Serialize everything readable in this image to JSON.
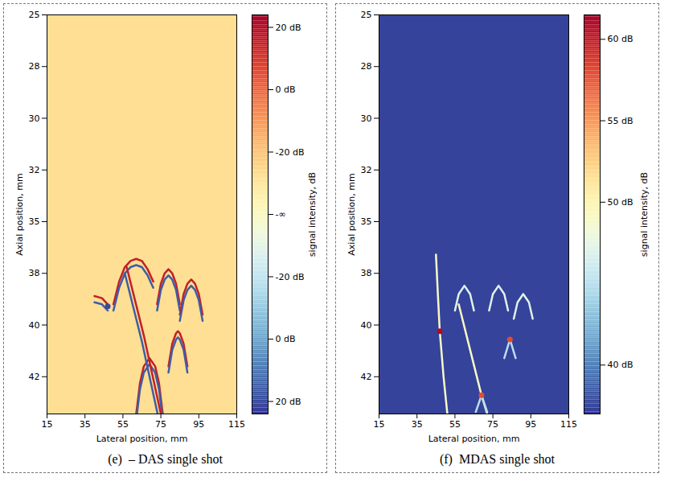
{
  "chart_data": [
    {
      "type": "heatmap",
      "title": "(e)  – DAS single shot",
      "x_label": "Lateral position, mm",
      "y_label": "Axial position, mm",
      "xlim": [
        15,
        115
      ],
      "xticks": [
        15,
        35,
        55,
        75,
        95,
        115
      ],
      "ylim": [
        25,
        44.3
      ],
      "yticks": [
        {
          "value": 25,
          "label": "25"
        },
        {
          "value": 27.5,
          "label": "28"
        },
        {
          "value": 30,
          "label": "30"
        },
        {
          "value": 32.5,
          "label": "32"
        },
        {
          "value": 35,
          "label": "35"
        },
        {
          "value": 37.5,
          "label": "38"
        },
        {
          "value": 40,
          "label": "40"
        },
        {
          "value": 42.5,
          "label": "42"
        }
      ],
      "background": 0.6,
      "traces": [
        {
          "value": 2.8,
          "points": [
            [
              50,
              39.0
            ],
            [
              53,
              37.9
            ],
            [
              56,
              37.2
            ],
            [
              59,
              36.9
            ],
            [
              62,
              36.8
            ],
            [
              65,
              36.9
            ],
            [
              68,
              37.3
            ],
            [
              71,
              37.9
            ]
          ]
        },
        {
          "value": -2.8,
          "points": [
            [
              50,
              39.3
            ],
            [
              53,
              38.2
            ],
            [
              56,
              37.5
            ],
            [
              59,
              37.2
            ],
            [
              62,
              37.1
            ],
            [
              65,
              37.2
            ],
            [
              68,
              37.6
            ],
            [
              71,
              38.2
            ]
          ]
        },
        {
          "value": 2.8,
          "points": [
            [
              73,
              39.0
            ],
            [
              75,
              38.0
            ],
            [
              77,
              37.5
            ],
            [
              79,
              37.3
            ],
            [
              81,
              37.5
            ],
            [
              83,
              38.0
            ],
            [
              85,
              39.0
            ]
          ]
        },
        {
          "value": -2.8,
          "points": [
            [
              73,
              39.3
            ],
            [
              75,
              38.3
            ],
            [
              77,
              37.8
            ],
            [
              79,
              37.6
            ],
            [
              81,
              37.8
            ],
            [
              83,
              38.3
            ],
            [
              85,
              39.3
            ]
          ]
        },
        {
          "value": 2.8,
          "points": [
            [
              85,
              39.5
            ],
            [
              87,
              38.5
            ],
            [
              89,
              38.0
            ],
            [
              91,
              37.8
            ],
            [
              93,
              38.0
            ],
            [
              95,
              38.5
            ],
            [
              97,
              39.5
            ]
          ]
        },
        {
          "value": -2.8,
          "points": [
            [
              85,
              39.8
            ],
            [
              87,
              38.8
            ],
            [
              89,
              38.3
            ],
            [
              91,
              38.1
            ],
            [
              93,
              38.3
            ],
            [
              95,
              38.8
            ],
            [
              97,
              39.8
            ]
          ]
        },
        {
          "value": 2.8,
          "points": [
            [
              79,
              42.0
            ],
            [
              81,
              40.9
            ],
            [
              83,
              40.4
            ],
            [
              84,
              40.3
            ],
            [
              85,
              40.4
            ],
            [
              87,
              40.9
            ],
            [
              89,
              42.0
            ]
          ]
        },
        {
          "value": -2.8,
          "points": [
            [
              79,
              42.3
            ],
            [
              81,
              41.2
            ],
            [
              83,
              40.7
            ],
            [
              84,
              40.6
            ],
            [
              85,
              40.7
            ],
            [
              87,
              41.2
            ],
            [
              89,
              42.3
            ]
          ]
        },
        {
          "value": 2.8,
          "points": [
            [
              62,
              44.3
            ],
            [
              64,
              42.8
            ],
            [
              66,
              42.0
            ],
            [
              69,
              41.6
            ],
            [
              72,
              42.0
            ],
            [
              74,
              42.8
            ],
            [
              76,
              44.3
            ]
          ]
        },
        {
          "value": -2.8,
          "points": [
            [
              62,
              44.6
            ],
            [
              64,
              43.1
            ],
            [
              66,
              42.3
            ],
            [
              69,
              41.9
            ],
            [
              72,
              42.3
            ],
            [
              74,
              43.1
            ],
            [
              76,
              44.6
            ]
          ]
        },
        {
          "value": 2.8,
          "points": [
            [
              57,
              37.2
            ],
            [
              66,
              40.5
            ],
            [
              75,
              44.3
            ]
          ]
        },
        {
          "value": -2.8,
          "points": [
            [
              56,
              37.5
            ],
            [
              65,
              40.8
            ],
            [
              74,
              44.6
            ]
          ]
        },
        {
          "value": 2.8,
          "points": [
            [
              40,
              38.6
            ],
            [
              44,
              38.7
            ],
            [
              47,
              39.0
            ]
          ]
        },
        {
          "value": -2.8,
          "points": [
            [
              40,
              38.9
            ],
            [
              44,
              39.0
            ],
            [
              47,
              39.3
            ]
          ]
        }
      ],
      "spots": [
        {
          "x": 47,
          "y": 39.1,
          "value": -3
        }
      ],
      "colorbar": {
        "range": [
          -3.2,
          3.2
        ],
        "ticks": [
          {
            "value": 3,
            "label": "20 dB"
          },
          {
            "value": 2,
            "label": "0 dB"
          },
          {
            "value": 1,
            "label": "-20 dB"
          },
          {
            "value": 0,
            "label": "-∞"
          },
          {
            "value": -1,
            "label": "-20 dB"
          },
          {
            "value": -2,
            "label": "0 dB"
          },
          {
            "value": -3,
            "label": "20 dB"
          }
        ],
        "label": "signal intensity, dB"
      }
    },
    {
      "type": "heatmap",
      "title": "(f)  MDAS single shot",
      "x_label": "Lateral position, mm",
      "y_label": "Axial position, mm",
      "xlim": [
        15,
        115
      ],
      "xticks": [
        15,
        35,
        55,
        75,
        95,
        115
      ],
      "ylim": [
        25,
        44.3
      ],
      "yticks": [
        {
          "value": 25,
          "label": "25"
        },
        {
          "value": 27.5,
          "label": "28"
        },
        {
          "value": 30,
          "label": "30"
        },
        {
          "value": 32.5,
          "label": "32"
        },
        {
          "value": 35,
          "label": "35"
        },
        {
          "value": 37.5,
          "label": "38"
        },
        {
          "value": 40,
          "label": "40"
        },
        {
          "value": 42.5,
          "label": "42"
        }
      ],
      "background": 37.5,
      "traces": [
        {
          "value": 47,
          "points": [
            [
              55,
              39.3
            ],
            [
              57,
              38.5
            ],
            [
              60,
              38.1
            ],
            [
              63,
              38.5
            ],
            [
              65,
              39.3
            ]
          ]
        },
        {
          "value": 47,
          "points": [
            [
              73,
              39.3
            ],
            [
              75,
              38.5
            ],
            [
              78,
              38.1
            ],
            [
              81,
              38.5
            ],
            [
              83,
              39.3
            ]
          ]
        },
        {
          "value": 47,
          "points": [
            [
              86,
              39.7
            ],
            [
              88,
              38.9
            ],
            [
              91,
              38.5
            ],
            [
              94,
              38.9
            ],
            [
              96,
              39.7
            ]
          ]
        },
        {
          "value": 49,
          "points": [
            [
              45,
              36.6
            ],
            [
              46,
              38.5
            ],
            [
              47,
              40.3
            ],
            [
              49,
              42.5
            ],
            [
              51,
              44.3
            ]
          ]
        },
        {
          "value": 49,
          "points": [
            [
              57,
              39.0
            ],
            [
              63,
              41.2
            ],
            [
              69,
              43.4
            ],
            [
              72,
              44.3
            ]
          ]
        },
        {
          "value": 45,
          "points": [
            [
              81,
              41.6
            ],
            [
              84,
              40.7
            ],
            [
              87,
              41.6
            ]
          ]
        },
        {
          "value": 45,
          "points": [
            [
              66,
              44.2
            ],
            [
              69,
              43.4
            ],
            [
              72,
              44.2
            ]
          ]
        }
      ],
      "spots": [
        {
          "x": 47,
          "y": 40.3,
          "value": 61
        },
        {
          "x": 69,
          "y": 43.4,
          "value": 58
        },
        {
          "x": 84,
          "y": 40.7,
          "value": 58
        }
      ],
      "colorbar": {
        "range": [
          37,
          61.5
        ],
        "ticks": [
          {
            "value": 40,
            "label": "40 dB"
          },
          {
            "value": 50,
            "label": "50 dB"
          },
          {
            "value": 55,
            "label": "55 dB"
          },
          {
            "value": 60,
            "label": "60 dB"
          }
        ],
        "label": "signal intensity, dB"
      }
    }
  ]
}
